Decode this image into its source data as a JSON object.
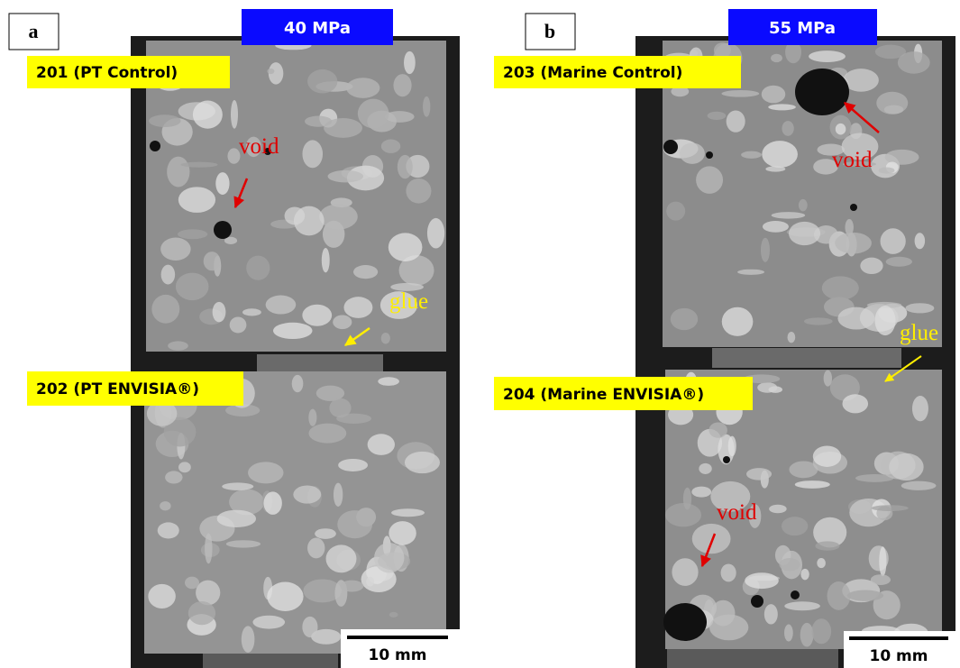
{
  "panels": [
    {
      "label": "a",
      "strength": "40 MPa",
      "specimens": [
        {
          "label": "201 (PT Control)"
        },
        {
          "label": "202 (PT ENVISIA®)"
        }
      ],
      "annotations": [
        "void",
        "glue"
      ],
      "scale_bar": "10 mm"
    },
    {
      "label": "b",
      "strength": "55 MPa",
      "specimens": [
        {
          "label": "203 (Marine Control)"
        },
        {
          "label": "204 (Marine ENVISIA®)"
        }
      ],
      "annotations": [
        "void",
        "glue",
        "void"
      ],
      "scale_bar": "10 mm"
    }
  ]
}
